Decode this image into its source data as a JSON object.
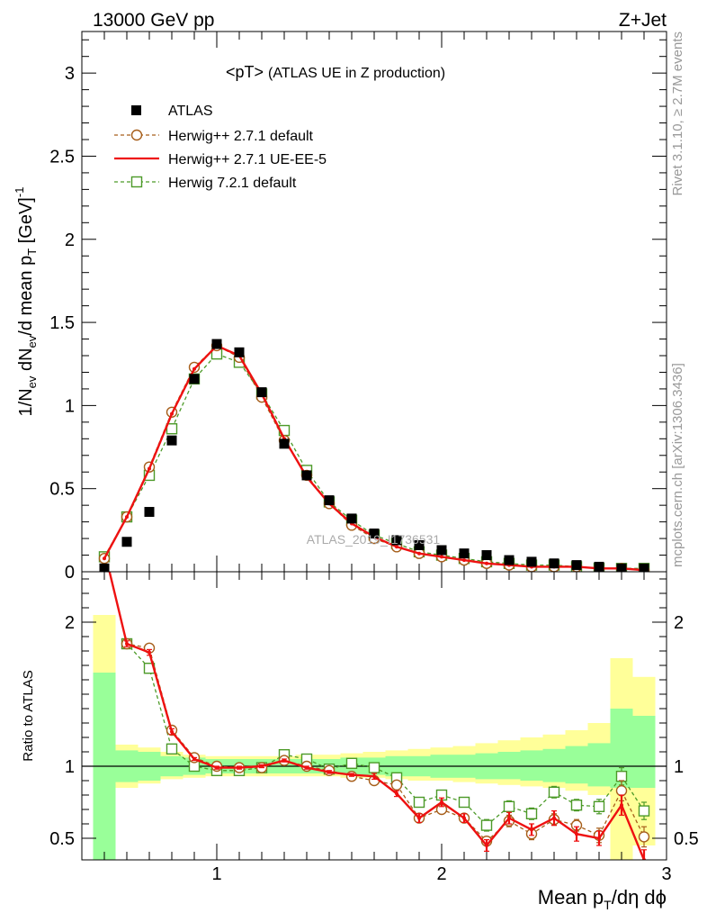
{
  "header": {
    "energy_label": "13000 GeV pp",
    "process_label": "Z+Jet"
  },
  "side_labels": {
    "rivet": "Rivet 3.1.10, ≥ 2.7M events",
    "mcplots": "mcplots.cern.ch [arXiv:1306.3436]"
  },
  "plot_title": {
    "main": "<pT>",
    "sub": "(ATLAS UE in Z production)"
  },
  "watermark": "ATLAS_2019_I1736531",
  "axes": {
    "ylabel_top": "1/N_ev dN_ev/d mean p_T [GeV]^-1",
    "ylabel_bottom": "Ratio to ATLAS",
    "xlabel": "Mean p_T/dη dϕ",
    "top_yticks": [
      "0",
      "0.5",
      "1",
      "1.5",
      "2",
      "2.5",
      "3"
    ],
    "bottom_yticks": [
      "0.5",
      "1",
      "2"
    ],
    "xticks": [
      "1",
      "2",
      "3"
    ]
  },
  "legend": [
    {
      "label": "ATLAS"
    },
    {
      "label": "Herwig++ 2.7.1 default"
    },
    {
      "label": "Herwig++ 2.7.1 UE-EE-5"
    },
    {
      "label": "Herwig 7.2.1 default"
    }
  ],
  "colors": {
    "data": "#000000",
    "herwigpp_default": "#a65e1a",
    "herwigpp_ueee5": "#ee1111",
    "herwig7": "#4c9a28",
    "band_inner": "#99ff99",
    "band_outer": "#ffff99"
  },
  "chart_data": [
    {
      "type": "scatter",
      "panel": "main",
      "xlim": [
        0.4,
        3.0
      ],
      "ylim": [
        0,
        3.25
      ],
      "x": [
        0.5,
        0.6,
        0.7,
        0.8,
        0.9,
        1.0,
        1.1,
        1.2,
        1.3,
        1.4,
        1.5,
        1.6,
        1.7,
        1.8,
        1.9,
        2.0,
        2.1,
        2.2,
        2.3,
        2.4,
        2.5,
        2.6,
        2.7,
        2.8,
        2.9
      ],
      "series": [
        {
          "name": "ATLAS",
          "style": "marker",
          "values": [
            0.02,
            0.18,
            0.36,
            0.79,
            1.16,
            1.37,
            1.32,
            1.08,
            0.77,
            0.58,
            0.43,
            0.32,
            0.23,
            0.19,
            0.16,
            0.13,
            0.11,
            0.1,
            0.07,
            0.06,
            0.05,
            0.04,
            0.03,
            0.02,
            0.02
          ]
        },
        {
          "name": "Herwig++ 2.7.1 default",
          "style": "dashed-circle",
          "values": [
            0.08,
            0.33,
            0.63,
            0.96,
            1.23,
            1.36,
            1.29,
            1.05,
            0.79,
            0.58,
            0.41,
            0.28,
            0.2,
            0.15,
            0.11,
            0.09,
            0.07,
            0.05,
            0.04,
            0.03,
            0.03,
            0.03,
            0.02,
            0.02,
            0.01
          ]
        },
        {
          "name": "Herwig++ 2.7.1 UE-EE-5",
          "style": "solid",
          "values": [
            0.08,
            0.33,
            0.62,
            0.95,
            1.22,
            1.36,
            1.3,
            1.07,
            0.8,
            0.57,
            0.41,
            0.29,
            0.21,
            0.15,
            0.11,
            0.09,
            0.07,
            0.05,
            0.04,
            0.03,
            0.03,
            0.03,
            0.02,
            0.02,
            0.01
          ]
        },
        {
          "name": "Herwig 7.2.1 default",
          "style": "dashed-square",
          "values": [
            0.09,
            0.33,
            0.58,
            0.86,
            1.16,
            1.31,
            1.26,
            1.07,
            0.85,
            0.61,
            0.42,
            0.31,
            0.22,
            0.17,
            0.12,
            0.1,
            0.08,
            0.06,
            0.05,
            0.04,
            0.04,
            0.03,
            0.02,
            0.02,
            0.02
          ]
        }
      ]
    },
    {
      "type": "line",
      "panel": "ratio",
      "xlim": [
        0.4,
        3.0
      ],
      "ylim": [
        0.35,
        2.35
      ],
      "x": [
        0.5,
        0.6,
        0.7,
        0.8,
        0.9,
        1.0,
        1.1,
        1.2,
        1.3,
        1.4,
        1.5,
        1.6,
        1.7,
        1.8,
        1.9,
        2.0,
        2.1,
        2.2,
        2.3,
        2.4,
        2.5,
        2.6,
        2.7,
        2.8,
        2.9
      ],
      "bands": {
        "inner": {
          "low": [
            0.35,
            0.89,
            0.9,
            0.93,
            0.94,
            0.95,
            0.95,
            0.95,
            0.95,
            0.95,
            0.95,
            0.94,
            0.94,
            0.93,
            0.93,
            0.92,
            0.92,
            0.91,
            0.91,
            0.9,
            0.89,
            0.88,
            0.86,
            0.85,
            0.85
          ],
          "high": [
            1.65,
            1.11,
            1.1,
            1.07,
            1.06,
            1.05,
            1.05,
            1.05,
            1.05,
            1.05,
            1.05,
            1.06,
            1.06,
            1.07,
            1.07,
            1.08,
            1.08,
            1.09,
            1.1,
            1.11,
            1.12,
            1.14,
            1.16,
            1.4,
            1.35
          ]
        },
        "outer": {
          "low": [
            0.35,
            0.85,
            0.88,
            0.91,
            0.92,
            0.93,
            0.93,
            0.93,
            0.93,
            0.93,
            0.93,
            0.92,
            0.92,
            0.91,
            0.9,
            0.9,
            0.89,
            0.88,
            0.87,
            0.86,
            0.85,
            0.83,
            0.8,
            0.35,
            0.45
          ],
          "high": [
            2.05,
            1.15,
            1.13,
            1.1,
            1.08,
            1.07,
            1.07,
            1.07,
            1.07,
            1.08,
            1.08,
            1.09,
            1.1,
            1.11,
            1.12,
            1.13,
            1.14,
            1.16,
            1.18,
            1.2,
            1.22,
            1.25,
            1.3,
            1.75,
            1.62
          ]
        }
      },
      "series": [
        {
          "name": "Herwig++ 2.7.1 default",
          "style": "dashed-circle",
          "values": [
            2.5,
            1.85,
            1.82,
            1.25,
            1.06,
            1.0,
            0.99,
            0.99,
            1.04,
            1.0,
            0.97,
            0.93,
            0.9,
            0.87,
            0.64,
            0.7,
            0.64,
            0.48,
            0.62,
            0.53,
            0.63,
            0.59,
            0.52,
            0.83,
            0.51
          ],
          "err": [
            0,
            0.02,
            0.02,
            0.02,
            0.01,
            0.01,
            0.01,
            0.01,
            0.01,
            0.01,
            0.01,
            0.01,
            0.02,
            0.02,
            0.03,
            0.03,
            0.03,
            0.03,
            0.04,
            0.04,
            0.04,
            0.04,
            0.05,
            0.07,
            0.07
          ]
        },
        {
          "name": "Herwig++ 2.7.1 UE-EE-5",
          "style": "solid",
          "values": [
            2.5,
            1.85,
            1.79,
            1.24,
            1.05,
            0.99,
            0.99,
            1.0,
            1.04,
            0.99,
            0.96,
            0.94,
            0.93,
            0.81,
            0.64,
            0.75,
            0.64,
            0.45,
            0.64,
            0.56,
            0.64,
            0.53,
            0.5,
            0.73,
            0.35
          ],
          "err": [
            0,
            0.02,
            0.02,
            0.02,
            0.01,
            0.01,
            0.01,
            0.01,
            0.01,
            0.01,
            0.01,
            0.01,
            0.02,
            0.02,
            0.03,
            0.03,
            0.03,
            0.04,
            0.04,
            0.04,
            0.05,
            0.05,
            0.05,
            0.07,
            0.07
          ]
        },
        {
          "name": "Herwig 7.2.1 default",
          "style": "dashed-square",
          "values": [
            2.5,
            1.85,
            1.68,
            1.12,
            1.0,
            0.97,
            0.97,
            0.99,
            1.08,
            1.05,
            0.98,
            1.02,
            0.99,
            0.92,
            0.75,
            0.8,
            0.75,
            0.59,
            0.72,
            0.67,
            0.82,
            0.73,
            0.72,
            0.93,
            0.69
          ],
          "err": [
            0,
            0.02,
            0.02,
            0.02,
            0.01,
            0.01,
            0.01,
            0.01,
            0.01,
            0.01,
            0.01,
            0.01,
            0.02,
            0.02,
            0.03,
            0.03,
            0.03,
            0.04,
            0.04,
            0.04,
            0.04,
            0.04,
            0.05,
            0.06,
            0.06
          ]
        }
      ]
    }
  ]
}
